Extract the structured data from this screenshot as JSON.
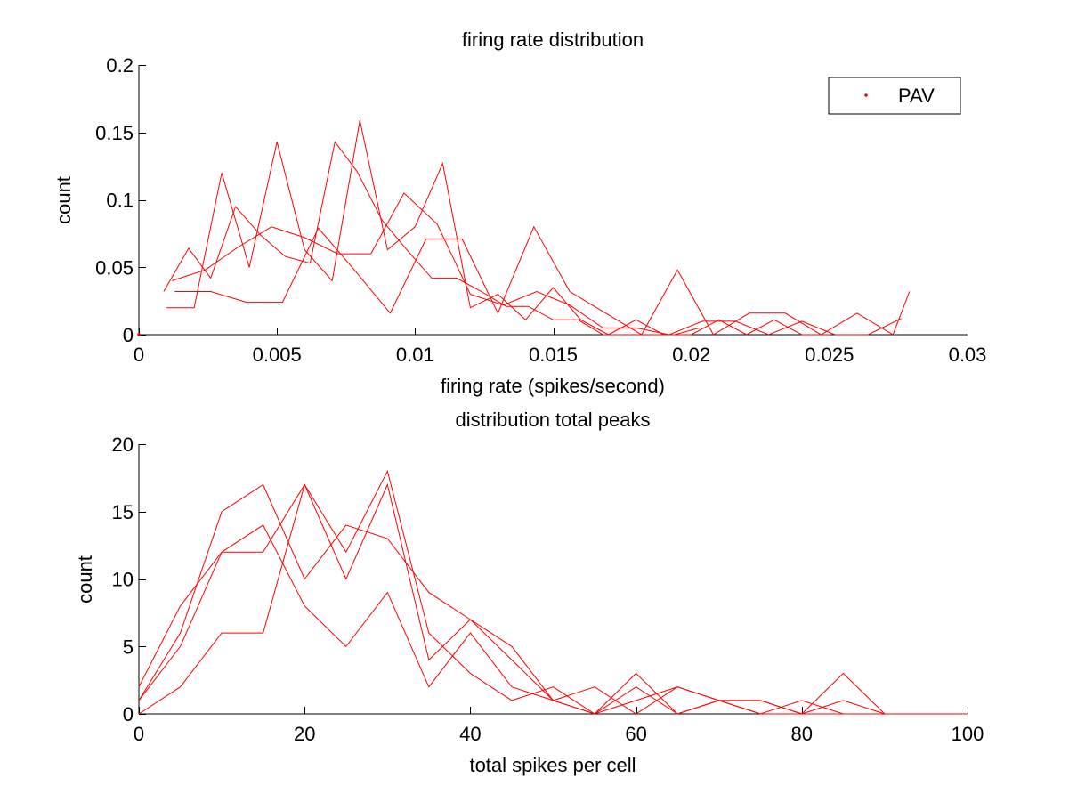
{
  "colors": {
    "series": "#ff0000",
    "axes": "#000000",
    "background": "#ffffff"
  },
  "chart_data": [
    {
      "type": "line",
      "title": "firing rate distribution",
      "xlabel": "firing rate (spikes/second)",
      "ylabel": "count",
      "xlim": [
        0,
        0.03
      ],
      "ylim": [
        0,
        0.2
      ],
      "xticks": [
        0,
        0.005,
        0.01,
        0.015,
        0.02,
        0.025,
        0.03
      ],
      "xtick_labels": [
        "0",
        "0.005",
        "0.01",
        "0.015",
        "0.02",
        "0.025",
        "0.03"
      ],
      "yticks": [
        0,
        0.05,
        0.1,
        0.15,
        0.2
      ],
      "ytick_labels": [
        "0",
        "0.05",
        "0.1",
        "0.15",
        "0.2"
      ],
      "grid": false,
      "legend": {
        "position": "top-right",
        "entries": [
          {
            "label": "PAV",
            "marker": "dot"
          }
        ]
      },
      "series": [
        {
          "x": [
            0.0009,
            0.0018,
            0.0026,
            0.0035,
            0.0044,
            0.0053,
            0.0062,
            0.0071,
            0.0079,
            0.0088,
            0.0097,
            0.0106,
            0.0115,
            0.0124,
            0.0133,
            0.0141,
            0.015,
            0.0159,
            0.0168,
            0.0177,
            0.0186,
            0.0194,
            0.0203
          ],
          "values": [
            0.032,
            0.064,
            0.042,
            0.095,
            0.074,
            0.058,
            0.053,
            0.143,
            0.121,
            0.085,
            0.063,
            0.042,
            0.042,
            0.032,
            0.021,
            0.021,
            0.011,
            0.011,
            0.0,
            0.0,
            0.0,
            0.0,
            0.005
          ]
        },
        {
          "x": [
            0.001,
            0.002,
            0.003,
            0.004,
            0.005,
            0.006,
            0.007,
            0.008,
            0.009,
            0.01,
            0.011,
            0.012,
            0.013,
            0.014,
            0.015,
            0.016,
            0.017,
            0.018,
            0.019,
            0.02,
            0.021,
            0.022,
            0.023,
            0.024,
            0.025
          ],
          "values": [
            0.02,
            0.02,
            0.12,
            0.05,
            0.143,
            0.063,
            0.04,
            0.159,
            0.063,
            0.08,
            0.127,
            0.02,
            0.03,
            0.011,
            0.035,
            0.011,
            0.0,
            0.011,
            0.0,
            0.0,
            0.011,
            0.0,
            0.011,
            0.0,
            0.0
          ]
        },
        {
          "x": [
            0.0012,
            0.0024,
            0.0036,
            0.0048,
            0.006,
            0.0072,
            0.0084,
            0.0096,
            0.0108,
            0.012,
            0.0132,
            0.0144,
            0.0156,
            0.0168,
            0.018,
            0.0192,
            0.0204,
            0.0216,
            0.0228,
            0.024,
            0.0252,
            0.0264,
            0.0276
          ],
          "values": [
            0.04,
            0.048,
            0.065,
            0.08,
            0.072,
            0.06,
            0.06,
            0.105,
            0.082,
            0.03,
            0.022,
            0.032,
            0.022,
            0.005,
            0.005,
            0.0,
            0.01,
            0.01,
            0.0,
            0.01,
            0.0,
            0.0,
            0.012
          ]
        },
        {
          "x": [
            0.0013,
            0.0026,
            0.0039,
            0.0052,
            0.0065,
            0.0078,
            0.0091,
            0.0104,
            0.0117,
            0.013,
            0.0143,
            0.0156,
            0.0169,
            0.0182,
            0.0195,
            0.0208,
            0.0221,
            0.0234,
            0.0247,
            0.026,
            0.0273,
            0.0279
          ],
          "values": [
            0.032,
            0.032,
            0.024,
            0.024,
            0.079,
            0.048,
            0.016,
            0.071,
            0.071,
            0.016,
            0.08,
            0.032,
            0.016,
            0.0,
            0.048,
            0.0,
            0.016,
            0.016,
            0.0,
            0.016,
            0.0,
            0.032
          ]
        }
      ]
    },
    {
      "type": "line",
      "title": "distribution total peaks",
      "xlabel": "total spikes per cell",
      "ylabel": "count",
      "xlim": [
        0,
        100
      ],
      "ylim": [
        0,
        20
      ],
      "xticks": [
        0,
        20,
        40,
        60,
        80,
        100
      ],
      "xtick_labels": [
        "0",
        "20",
        "40",
        "60",
        "80",
        "100"
      ],
      "yticks": [
        0,
        5,
        10,
        15,
        20
      ],
      "ytick_labels": [
        "0",
        "5",
        "10",
        "15",
        "20"
      ],
      "grid": false,
      "series": [
        {
          "x": [
            0,
            5,
            10,
            15,
            20,
            25,
            30,
            35,
            40,
            45,
            50,
            55,
            60,
            65,
            70,
            75,
            80,
            85,
            90,
            95,
            100
          ],
          "values": [
            2,
            8,
            12,
            12,
            17,
            10,
            17,
            4,
            7,
            5,
            1,
            0,
            3,
            0,
            1,
            1,
            0,
            3,
            0,
            0,
            0
          ]
        },
        {
          "x": [
            0,
            5,
            10,
            15,
            20,
            25,
            30,
            35,
            40,
            45,
            50,
            55,
            60,
            65,
            70,
            75,
            80,
            85,
            90,
            95,
            100
          ],
          "values": [
            1,
            6,
            15,
            17,
            10,
            14,
            13,
            9,
            7,
            4,
            1,
            2,
            0,
            2,
            1,
            1,
            0,
            0,
            0,
            0,
            0
          ]
        },
        {
          "x": [
            0,
            5,
            10,
            15,
            20,
            25,
            30,
            35,
            40,
            45,
            50,
            55,
            60,
            65,
            70,
            75,
            80,
            85,
            90
          ],
          "values": [
            1,
            5,
            12,
            14,
            8,
            5,
            9,
            2,
            6,
            2,
            1,
            0,
            1,
            2,
            1,
            0,
            1,
            0,
            0
          ]
        },
        {
          "x": [
            0,
            5,
            10,
            15,
            20,
            25,
            30,
            35,
            40,
            45,
            50,
            55,
            60,
            65,
            70,
            75,
            80,
            85,
            90
          ],
          "values": [
            0,
            2,
            6,
            6,
            17,
            12,
            18,
            6,
            3,
            1,
            2,
            0,
            2,
            0,
            1,
            0,
            0,
            1,
            0
          ]
        }
      ]
    }
  ]
}
